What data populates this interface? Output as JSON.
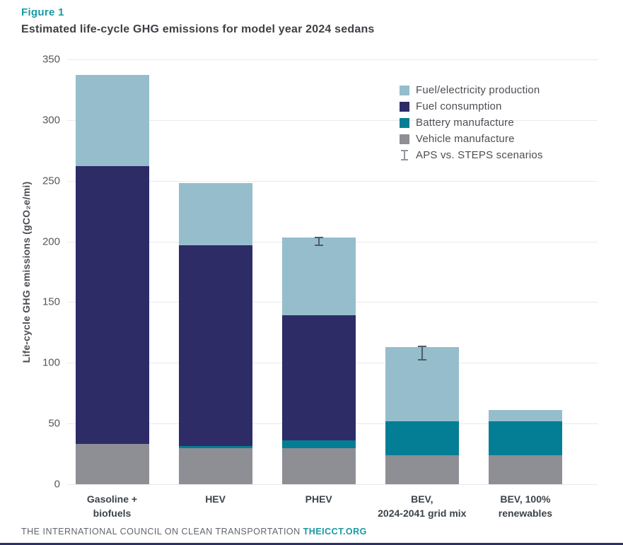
{
  "header": {
    "figure_label": "Figure 1",
    "title": "Estimated life-cycle GHG emissions for model year 2024 sedans"
  },
  "colors": {
    "accent_teal": "#1899a6",
    "fuel_electricity_production": "#95bdcc",
    "fuel_consumption": "#2d2c67",
    "battery_manufacture": "#047e95",
    "vehicle_manufacture": "#8e8e95",
    "error_bar": "#4e5e69",
    "error_bar_legend": "#8f97a0",
    "gridline": "#e8e9eb",
    "footer_rule": "#2b3168"
  },
  "chart_data": {
    "type": "bar",
    "stacked": true,
    "title": "Estimated life-cycle GHG emissions for model year 2024 sedans",
    "xlabel": "",
    "ylabel": "Life-cycle GHG emissions (gCO₂e/mi)",
    "ylim": [
      0,
      350
    ],
    "yticks": [
      0,
      50,
      100,
      150,
      200,
      250,
      300,
      350
    ],
    "grid": true,
    "categories": [
      "Gasoline +\nbiofuels",
      "HEV",
      "PHEV",
      "BEV,\n2024-2041 grid mix",
      "BEV, 100%\nrenewables"
    ],
    "series": [
      {
        "name": "Vehicle manufacture",
        "color_key": "vehicle_manufacture",
        "values": [
          33,
          30,
          30,
          24,
          24
        ]
      },
      {
        "name": "Battery manufacture",
        "color_key": "battery_manufacture",
        "values": [
          0,
          1.5,
          6,
          28,
          28
        ]
      },
      {
        "name": "Fuel consumption",
        "color_key": "fuel_consumption",
        "values": [
          229,
          165.5,
          103,
          0,
          0
        ]
      },
      {
        "name": "Fuel/electricity production",
        "color_key": "fuel_electricity_production",
        "values": [
          75,
          51,
          64,
          61,
          9
        ]
      }
    ],
    "stack_totals": [
      337,
      248,
      203,
      113,
      61
    ],
    "error_bars": {
      "label": "APS vs. STEPS scenarios",
      "points": [
        {
          "category_index": 2,
          "low": 196,
          "high": 204
        },
        {
          "category_index": 3,
          "low": 102,
          "high": 114
        }
      ]
    },
    "legend": {
      "position": "inside-top-right",
      "items": [
        {
          "label": "Fuel/electricity production",
          "marker": "square",
          "color_key": "fuel_electricity_production"
        },
        {
          "label": "Fuel consumption",
          "marker": "square",
          "color_key": "fuel_consumption"
        },
        {
          "label": "Battery manufacture",
          "marker": "square",
          "color_key": "battery_manufacture"
        },
        {
          "label": "Vehicle manufacture",
          "marker": "square",
          "color_key": "vehicle_manufacture"
        },
        {
          "label": "APS vs. STEPS scenarios",
          "marker": "errorbar",
          "color_key": "error_bar_legend"
        }
      ]
    }
  },
  "footer": {
    "org_text": "THE INTERNATIONAL COUNCIL ON CLEAN TRANSPORTATION",
    "site_text": "THEICCT.ORG"
  }
}
